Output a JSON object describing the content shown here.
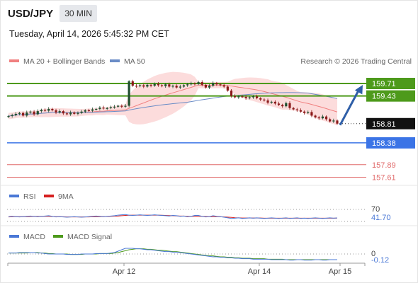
{
  "header": {
    "symbol": "USD/JPY",
    "timeframe": "30 MIN",
    "timestamp": "Tuesday, April 14, 2026 5:45:32 PM CET"
  },
  "legend": {
    "ma20_bb": "MA 20 + Bollinger Bands",
    "ma50": "MA 50",
    "copyright": "Research © 2026 Trading Central"
  },
  "colors": {
    "bb_band": "#fbd6d6",
    "ma20": "#f08080",
    "ma50": "#6a8cc6",
    "candle_up": "#1f4e2f",
    "candle_down": "#8b1a1a",
    "resistance": "#4d9a1b",
    "current": "#111111",
    "pivot": "#3b74e6",
    "support": "#e06a6a",
    "rsi": "#4a78d6",
    "rsi_ma": "#d61f1f",
    "macd": "#4a78d6",
    "macd_signal": "#4d9a1b"
  },
  "levels": [
    {
      "value": "159.71",
      "kind": "resistance",
      "color": "#4d9a1b"
    },
    {
      "value": "159.43",
      "kind": "resistance",
      "color": "#4d9a1b"
    },
    {
      "value": "158.81",
      "kind": "current",
      "color": "#111111"
    },
    {
      "value": "158.38",
      "kind": "pivot",
      "color": "#3b74e6"
    },
    {
      "value": "157.89",
      "kind": "support",
      "color": "#e06a6a"
    },
    {
      "value": "157.61",
      "kind": "support",
      "color": "#e06a6a"
    }
  ],
  "rsi_panel": {
    "legend_rsi": "RSI",
    "legend_ma": "9MA",
    "level_label": "70",
    "value_label": "41.70"
  },
  "macd_panel": {
    "legend_macd": "MACD",
    "legend_signal": "MACD Signal",
    "zero_label": "0",
    "value_label": "-0.12"
  },
  "x_axis": {
    "ticks": [
      "Apr 12",
      "Apr 14",
      "Apr 15"
    ]
  },
  "chart_data": {
    "type": "candlestick",
    "instrument": "USD/JPY",
    "interval": "30 MIN",
    "ylim": [
      157.5,
      159.9
    ],
    "price_closes": [
      158.98,
      159.0,
      159.03,
      159.05,
      158.99,
      159.06,
      159.08,
      159.02,
      159.09,
      159.12,
      159.1,
      159.14,
      159.11,
      159.06,
      159.09,
      159.04,
      159.02,
      159.06,
      159.03,
      159.05,
      159.08,
      159.11,
      159.1,
      159.13,
      159.14,
      159.17,
      159.15,
      159.16,
      159.18,
      159.19,
      159.21,
      159.19,
      159.21,
      159.76,
      159.66,
      159.65,
      159.67,
      159.64,
      159.68,
      159.66,
      159.7,
      159.67,
      159.65,
      159.69,
      159.64,
      159.66,
      159.62,
      159.64,
      159.67,
      159.69,
      159.71,
      159.7,
      159.74,
      159.68,
      159.62,
      159.66,
      159.72,
      159.69,
      159.67,
      159.64,
      159.55,
      159.43,
      159.4,
      159.42,
      159.41,
      159.38,
      159.4,
      159.42,
      159.38,
      159.35,
      159.33,
      159.28,
      159.3,
      159.26,
      159.23,
      159.2,
      159.27,
      159.16,
      159.13,
      159.11,
      159.08,
      159.05,
      159.07,
      158.99,
      158.95,
      158.93,
      158.97,
      158.91,
      158.86,
      158.88,
      158.81
    ],
    "indicators": [
      "MA 20 + Bollinger Bands",
      "MA 50"
    ],
    "rsi": [
      46,
      47,
      46,
      45,
      46,
      47,
      48,
      47,
      46,
      47,
      48,
      49,
      47,
      45,
      46,
      45,
      44,
      45,
      46,
      45,
      44,
      45,
      46,
      47,
      48,
      47,
      46,
      47,
      48,
      49,
      51,
      52,
      53,
      51,
      50,
      51,
      52,
      51,
      50,
      51,
      52,
      51,
      50,
      49,
      48,
      50,
      49,
      47,
      48,
      46,
      47,
      50,
      50,
      47,
      45,
      46,
      49,
      47,
      46,
      44,
      42,
      40,
      41,
      42,
      40,
      41,
      42,
      41,
      42,
      41,
      40,
      41,
      42,
      41,
      40,
      41,
      42,
      40,
      41,
      42,
      40,
      41,
      40,
      41,
      42,
      41,
      40,
      41,
      42,
      41,
      41.7
    ],
    "rsi_ma": [
      45,
      45.5,
      46,
      46,
      46,
      46,
      46.5,
      47,
      47,
      47,
      47,
      47,
      46.5,
      46,
      46,
      45.5,
      45,
      45,
      45,
      45,
      45,
      45,
      45,
      45.5,
      46,
      46,
      46,
      46.5,
      47,
      47.5,
      48,
      49,
      50,
      50.5,
      51,
      51,
      51,
      51,
      51,
      51,
      51,
      51,
      50.5,
      50,
      49.5,
      49,
      48.5,
      48,
      48,
      47.5,
      47,
      47,
      47,
      47,
      46.5,
      46,
      46,
      46,
      45.5,
      45,
      44.5,
      43.5,
      42.5,
      42,
      41.5,
      41.5,
      41.5,
      41.5,
      41.5,
      41.5,
      41,
      41,
      41,
      41,
      41,
      41,
      41,
      41,
      41,
      41,
      41,
      41,
      41,
      41,
      41,
      41,
      41,
      41,
      41,
      41,
      41.2
    ],
    "macd": [
      0.02,
      0.02,
      0.02,
      0.03,
      0.03,
      0.03,
      0.03,
      0.03,
      0.02,
      0.02,
      0.01,
      0.0,
      0.0,
      0.0,
      0.0,
      0.0,
      -0.01,
      -0.01,
      -0.01,
      -0.01,
      0.0,
      0.0,
      0.0,
      0.0,
      0.01,
      0.01,
      0.01,
      0.01,
      0.02,
      0.03,
      0.06,
      0.09,
      0.12,
      0.12,
      0.12,
      0.11,
      0.11,
      0.1,
      0.09,
      0.09,
      0.08,
      0.07,
      0.06,
      0.05,
      0.05,
      0.04,
      0.04,
      0.03,
      0.02,
      0.01,
      0.0,
      -0.01,
      -0.02,
      -0.03,
      -0.04,
      -0.05,
      -0.06,
      -0.06,
      -0.07,
      -0.07,
      -0.08,
      -0.08,
      -0.09,
      -0.09,
      -0.1,
      -0.1,
      -0.1,
      -0.11,
      -0.11,
      -0.11,
      -0.11,
      -0.11,
      -0.12,
      -0.12,
      -0.12,
      -0.12,
      -0.12,
      -0.13,
      -0.13,
      -0.12,
      -0.12,
      -0.13,
      -0.13,
      -0.13,
      -0.12,
      -0.12,
      -0.13,
      -0.13,
      -0.12,
      -0.12,
      -0.12
    ],
    "macd_signal": [
      0.02,
      0.02,
      0.02,
      0.02,
      0.02,
      0.02,
      0.03,
      0.03,
      0.03,
      0.02,
      0.02,
      0.01,
      0.01,
      0.0,
      0.0,
      0.0,
      0.0,
      -0.01,
      -0.01,
      -0.01,
      -0.01,
      0.0,
      0.0,
      0.0,
      0.0,
      0.01,
      0.01,
      0.01,
      0.01,
      0.02,
      0.03,
      0.05,
      0.07,
      0.09,
      0.1,
      0.11,
      0.11,
      0.11,
      0.1,
      0.1,
      0.09,
      0.08,
      0.08,
      0.07,
      0.06,
      0.05,
      0.05,
      0.04,
      0.03,
      0.02,
      0.01,
      0.0,
      -0.01,
      -0.02,
      -0.03,
      -0.04,
      -0.04,
      -0.05,
      -0.06,
      -0.06,
      -0.07,
      -0.07,
      -0.08,
      -0.08,
      -0.09,
      -0.09,
      -0.09,
      -0.1,
      -0.1,
      -0.1,
      -0.1,
      -0.11,
      -0.11,
      -0.11,
      -0.11,
      -0.11,
      -0.12,
      -0.12,
      -0.12,
      -0.12,
      -0.12,
      -0.12,
      -0.12,
      -0.12,
      -0.12,
      -0.12,
      -0.12,
      -0.12,
      -0.12,
      -0.12,
      -0.12
    ],
    "projection": {
      "from": 158.81,
      "to": 159.71
    }
  }
}
